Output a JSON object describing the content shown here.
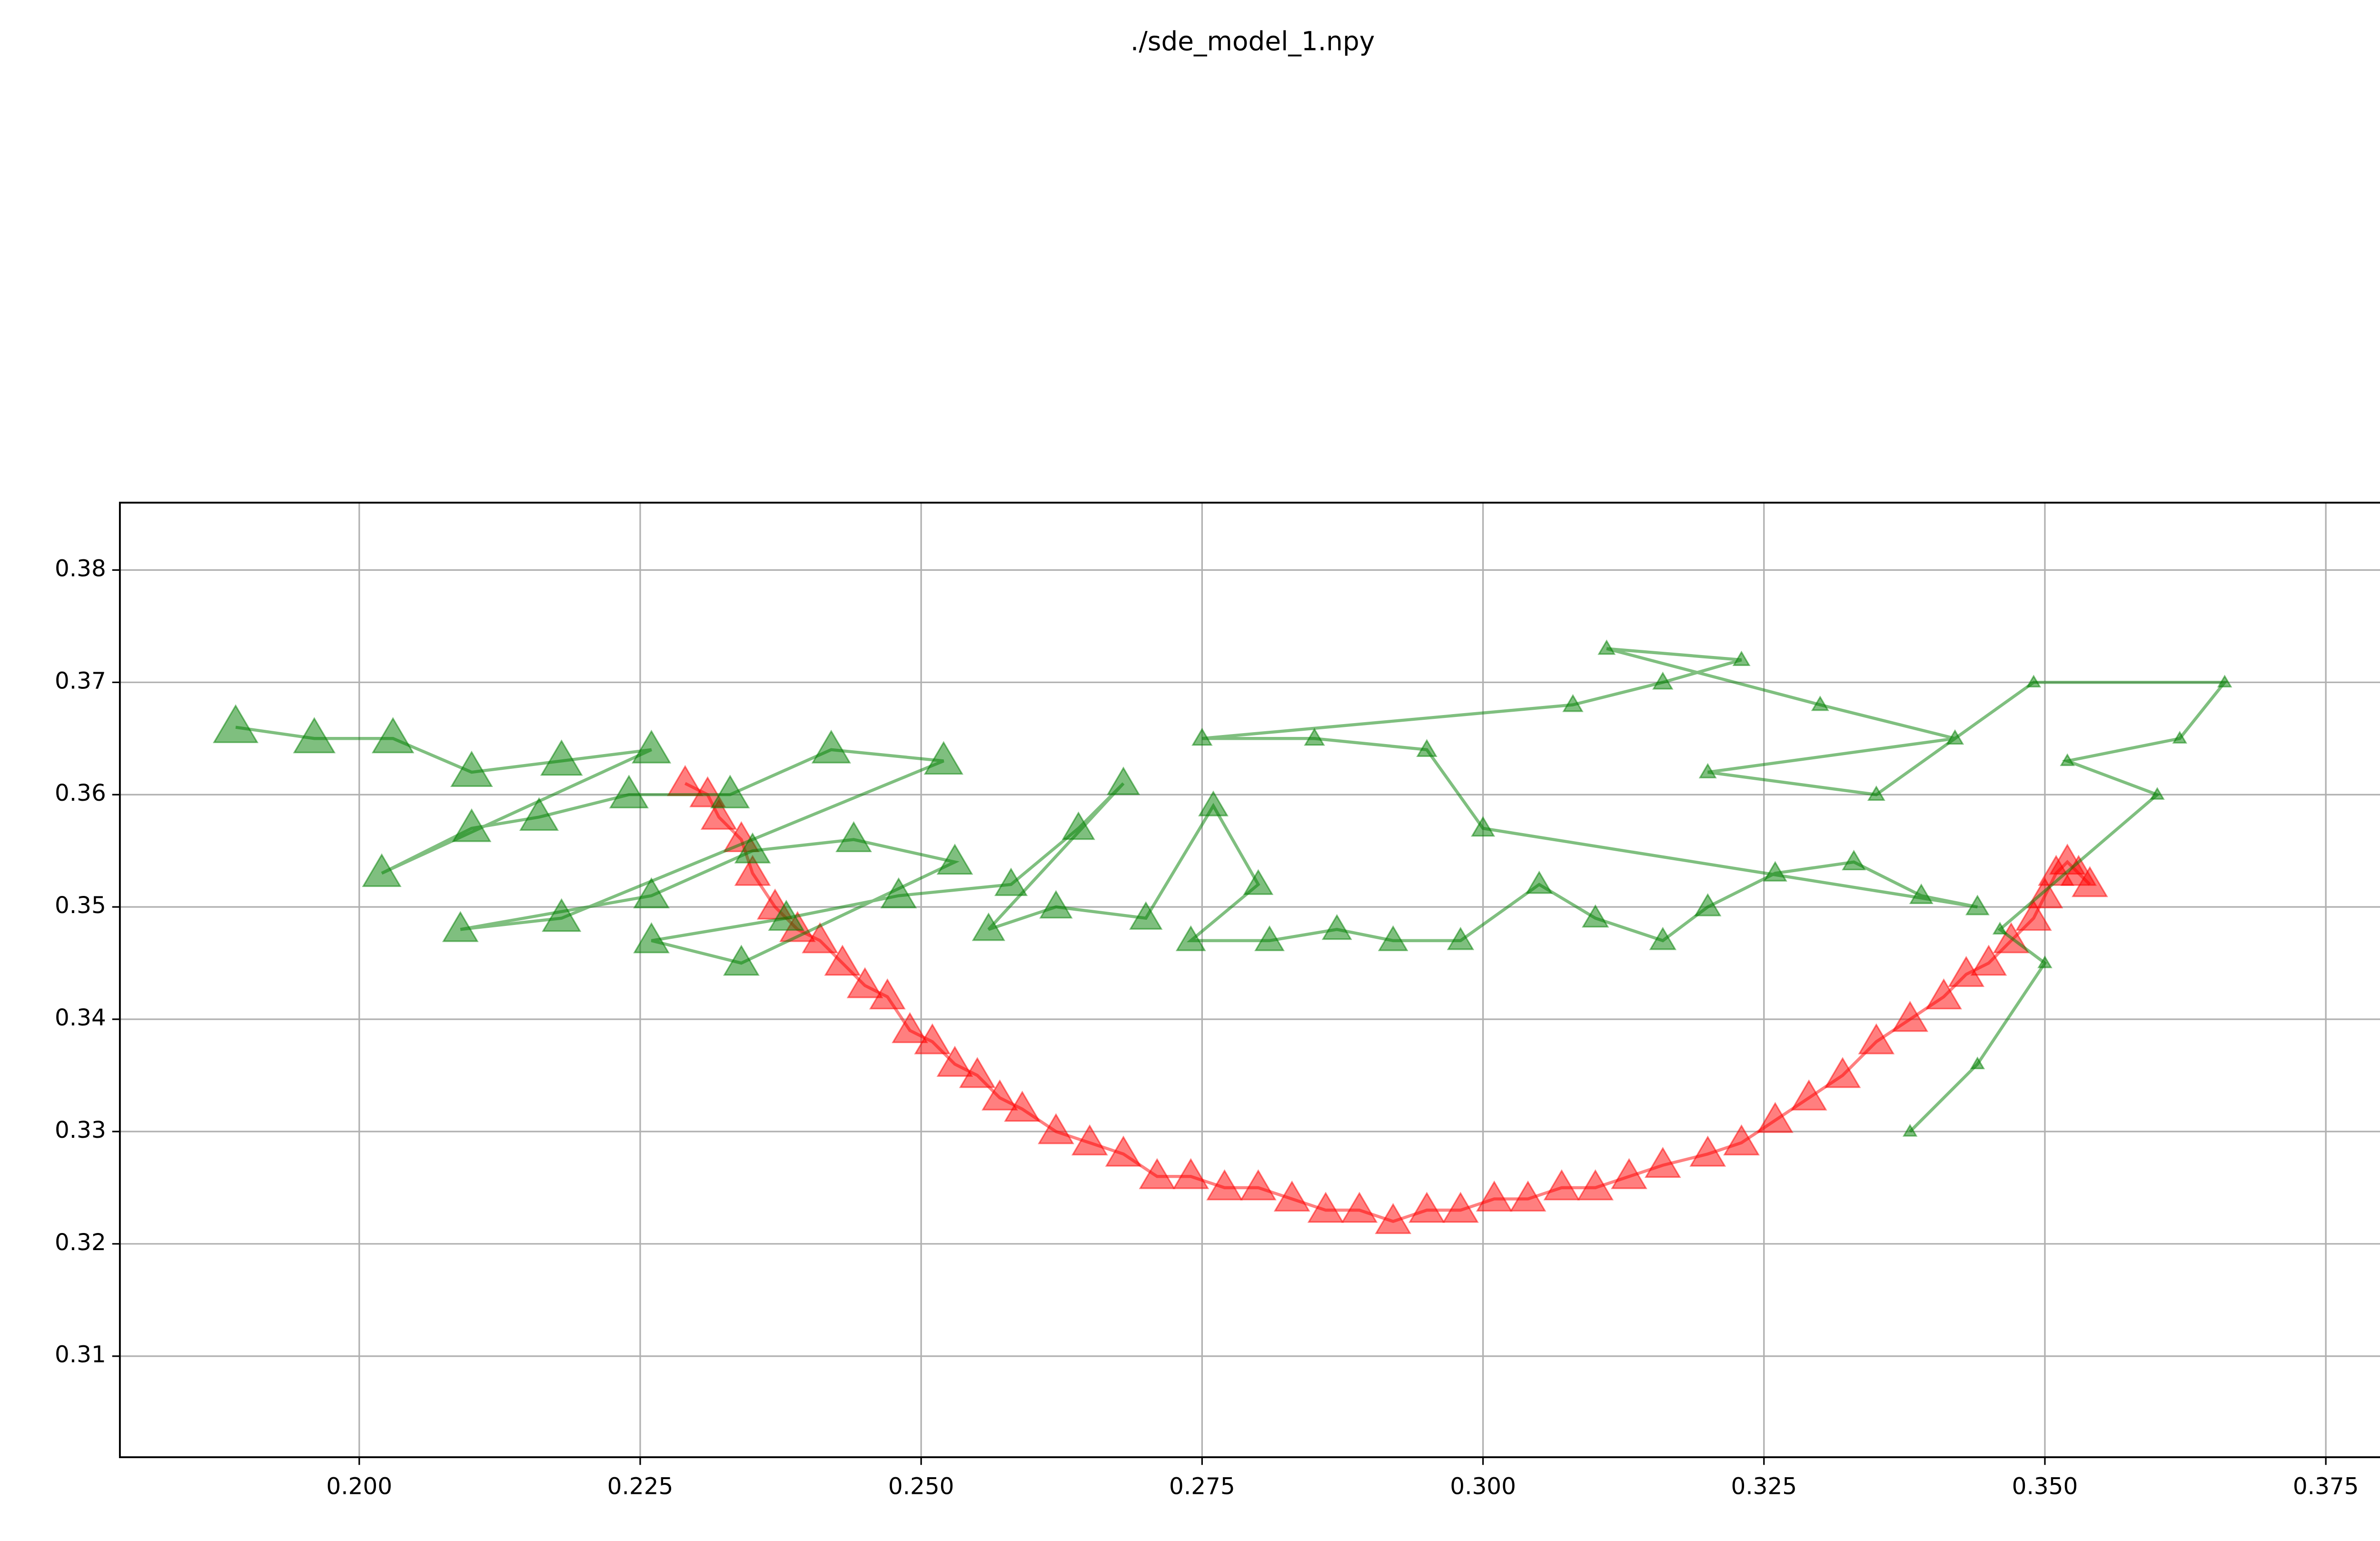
{
  "chart_data": {
    "type": "scatter",
    "title": "./sde_model_1.npy",
    "xlim": [
      0.1787,
      0.3803
    ],
    "ylim": [
      0.301,
      0.386
    ],
    "xticks": [
      {
        "value": 0.2,
        "label": "0.200"
      },
      {
        "value": 0.225,
        "label": "0.225"
      },
      {
        "value": 0.25,
        "label": "0.250"
      },
      {
        "value": 0.275,
        "label": "0.275"
      },
      {
        "value": 0.3,
        "label": "0.300"
      },
      {
        "value": 0.325,
        "label": "0.325"
      },
      {
        "value": 0.35,
        "label": "0.350"
      },
      {
        "value": 0.375,
        "label": "0.375"
      }
    ],
    "yticks": [
      0.31,
      0.32,
      0.33,
      0.34,
      0.35,
      0.36,
      0.37,
      0.38
    ],
    "grid": true,
    "opacity": 0.5,
    "series": [
      {
        "color": "#ff0000",
        "marker_size": 11,
        "x": [
          0.229,
          0.231,
          0.232,
          0.234,
          0.235,
          0.237,
          0.239,
          0.241,
          0.243,
          0.245,
          0.247,
          0.249,
          0.251,
          0.253,
          0.255,
          0.257,
          0.259,
          0.262,
          0.265,
          0.268,
          0.271,
          0.274,
          0.277,
          0.28,
          0.283,
          0.286,
          0.289,
          0.292,
          0.295,
          0.298,
          0.301,
          0.304,
          0.307,
          0.31,
          0.313,
          0.316,
          0.32,
          0.323,
          0.326,
          0.329,
          0.332,
          0.335,
          0.338,
          0.341,
          0.343,
          0.345,
          0.347,
          0.349,
          0.35,
          0.351,
          0.352,
          0.353,
          0.354
        ],
        "values": [
          0.361,
          0.36,
          0.358,
          0.356,
          0.353,
          0.35,
          0.348,
          0.347,
          0.345,
          0.343,
          0.342,
          0.339,
          0.338,
          0.336,
          0.335,
          0.333,
          0.332,
          0.33,
          0.329,
          0.328,
          0.326,
          0.326,
          0.325,
          0.325,
          0.324,
          0.323,
          0.323,
          0.322,
          0.323,
          0.323,
          0.324,
          0.324,
          0.325,
          0.325,
          0.326,
          0.327,
          0.328,
          0.329,
          0.331,
          0.333,
          0.335,
          0.338,
          0.34,
          0.342,
          0.344,
          0.345,
          0.347,
          0.349,
          0.351,
          0.353,
          0.354,
          0.353,
          0.352
        ]
      },
      {
        "color": "#008000",
        "x": [
          0.189,
          0.196,
          0.203,
          0.21,
          0.218,
          0.226,
          0.202,
          0.21,
          0.216,
          0.224,
          0.233,
          0.242,
          0.252,
          0.218,
          0.209,
          0.226,
          0.235,
          0.244,
          0.253,
          0.234,
          0.226,
          0.238,
          0.248,
          0.258,
          0.264,
          0.268,
          0.256,
          0.262,
          0.27,
          0.276,
          0.28,
          0.274,
          0.281,
          0.287,
          0.292,
          0.298,
          0.305,
          0.31,
          0.316,
          0.32,
          0.326,
          0.333,
          0.339,
          0.344,
          0.3,
          0.295,
          0.285,
          0.275,
          0.308,
          0.316,
          0.323,
          0.311,
          0.33,
          0.342,
          0.32,
          0.335,
          0.349,
          0.366,
          0.362,
          0.352,
          0.36,
          0.346,
          0.35,
          0.344,
          0.338
        ],
        "values": [
          0.366,
          0.365,
          0.365,
          0.362,
          0.363,
          0.364,
          0.353,
          0.357,
          0.358,
          0.36,
          0.36,
          0.364,
          0.363,
          0.349,
          0.348,
          0.351,
          0.355,
          0.356,
          0.354,
          0.345,
          0.347,
          0.349,
          0.351,
          0.352,
          0.357,
          0.361,
          0.348,
          0.35,
          0.349,
          0.359,
          0.352,
          0.347,
          0.347,
          0.348,
          0.347,
          0.347,
          0.352,
          0.349,
          0.347,
          0.35,
          0.353,
          0.354,
          0.351,
          0.35,
          0.357,
          0.364,
          0.365,
          0.365,
          0.368,
          0.37,
          0.372,
          0.373,
          0.368,
          0.365,
          0.362,
          0.36,
          0.37,
          0.37,
          0.365,
          0.363,
          0.36,
          0.348,
          0.345,
          0.336,
          0.33
        ],
        "sizes": [
          14,
          13,
          13,
          13,
          13,
          12,
          12,
          12,
          12,
          12,
          12,
          12,
          12,
          12,
          11,
          11,
          11,
          11,
          11,
          11,
          11,
          11,
          11,
          10,
          10,
          10,
          10,
          10,
          10,
          9,
          9,
          9,
          9,
          9,
          9,
          8,
          8,
          8,
          8,
          8,
          7,
          7,
          7,
          7,
          7,
          6,
          6,
          6,
          6,
          6,
          5,
          5,
          5,
          5,
          5,
          5,
          4,
          4,
          4,
          4,
          4,
          4,
          4,
          4,
          4
        ]
      }
    ]
  }
}
